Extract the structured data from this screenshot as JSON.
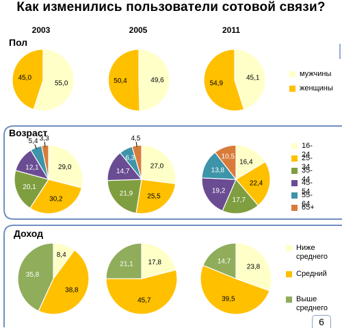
{
  "title": "Как изменились пользователи сотовой связи?",
  "years": [
    "2003",
    "2005",
    "2011"
  ],
  "page_number": "6",
  "colors": {
    "frame": "#6f8fbf",
    "male": "#ffffc8",
    "female": "#ffc000",
    "a16_24": "#ffffc8",
    "a25_34": "#ffc000",
    "a35_44": "#7f9e3f",
    "a45_54": "#6a4c93",
    "a55_64": "#3e94a8",
    "a65": "#d97c3a",
    "low": "#ffffc8",
    "mid": "#ffc000",
    "high": "#8fad5a"
  },
  "sections": [
    {
      "label": "Пол",
      "legend": [
        {
          "text": "мужчины",
          "color": "#ffffc8"
        },
        {
          "text": "женщины",
          "color": "#ffc000"
        }
      ]
    },
    {
      "label": "Возраст",
      "legend": [
        {
          "text": "16-24",
          "color": "#ffffc8"
        },
        {
          "text": "25-34",
          "color": "#ffc000"
        },
        {
          "text": "35-44",
          "color": "#7f9e3f"
        },
        {
          "text": "45-54",
          "color": "#6a4c93"
        },
        {
          "text": "55-64",
          "color": "#3e94a8"
        },
        {
          "text": "65+",
          "color": "#d97c3a"
        }
      ]
    },
    {
      "label": "Доход",
      "legend": [
        {
          "text": "Ниже\nсреднего",
          "color": "#ffffc8"
        },
        {
          "text": "Средний",
          "color": "#ffc000"
        },
        {
          "text": "Выше\nсреднего",
          "color": "#8fad5a"
        }
      ]
    }
  ],
  "chart_data": [
    {
      "type": "pie",
      "section": "Пол",
      "year": "2003",
      "slices": [
        {
          "category": "мужчины",
          "label": "55,0",
          "value": 55.0
        },
        {
          "category": "женщины",
          "label": "45,0",
          "value": 45.0
        }
      ]
    },
    {
      "type": "pie",
      "section": "Пол",
      "year": "2005",
      "slices": [
        {
          "category": "мужчины",
          "label": "49,6",
          "value": 49.6
        },
        {
          "category": "женщины",
          "label": "50,4",
          "value": 50.4
        }
      ]
    },
    {
      "type": "pie",
      "section": "Пол",
      "year": "2011",
      "slices": [
        {
          "category": "мужчины",
          "label": "45,1",
          "value": 45.1
        },
        {
          "category": "женщины",
          "label": "54,9",
          "value": 54.9
        }
      ]
    },
    {
      "type": "pie",
      "section": "Возраст",
      "year": "2003",
      "slices": [
        {
          "category": "16-24",
          "label": "29,0",
          "value": 29.0
        },
        {
          "category": "25-34",
          "label": "30,2",
          "value": 30.2
        },
        {
          "category": "35-44",
          "label": "20,1",
          "value": 20.1
        },
        {
          "category": "45-54",
          "label": "12,1",
          "value": 12.1
        },
        {
          "category": "55-64",
          "label": "5,4",
          "value": 5.4
        },
        {
          "category": "65+",
          "label": "3,3",
          "value": 3.3
        }
      ]
    },
    {
      "type": "pie",
      "section": "Возраст",
      "year": "2005",
      "slices": [
        {
          "category": "16-24",
          "label": "27,0",
          "value": 27.0
        },
        {
          "category": "25-34",
          "label": "25,5",
          "value": 25.5
        },
        {
          "category": "35-44",
          "label": "21,9",
          "value": 21.9
        },
        {
          "category": "45-54",
          "label": "14,7",
          "value": 14.7
        },
        {
          "category": "55-64",
          "label": "6,3",
          "value": 6.3
        },
        {
          "category": "65+",
          "label": "4,5",
          "value": 4.5
        }
      ]
    },
    {
      "type": "pie",
      "section": "Возраст",
      "year": "2011",
      "slices": [
        {
          "category": "16-24",
          "label": "16,4",
          "value": 16.4
        },
        {
          "category": "25-34",
          "label": "22,4",
          "value": 22.4
        },
        {
          "category": "35-44",
          "label": "17,7",
          "value": 17.7
        },
        {
          "category": "45-54",
          "label": "19,2",
          "value": 19.2
        },
        {
          "category": "55-64",
          "label": "13,8",
          "value": 13.8
        },
        {
          "category": "65+",
          "label": "10,5",
          "value": 10.5
        }
      ]
    },
    {
      "type": "pie",
      "section": "Доход",
      "year": "2003",
      "slices": [
        {
          "category": "Ниже среднего",
          "label": "8,4",
          "value": 8.4
        },
        {
          "category": "Средний",
          "label": "38,8",
          "value": 38.8
        },
        {
          "category": "Выше среднего",
          "label": "35,8",
          "value": 35.8
        }
      ]
    },
    {
      "type": "pie",
      "section": "Доход",
      "year": "2005",
      "slices": [
        {
          "category": "Ниже среднего",
          "label": "17,8",
          "value": 17.8
        },
        {
          "category": "Средний",
          "label": "45,7",
          "value": 45.7
        },
        {
          "category": "Выше среднего",
          "label": "21,1",
          "value": 21.1
        }
      ]
    },
    {
      "type": "pie",
      "section": "Доход",
      "year": "2011",
      "slices": [
        {
          "category": "Ниже среднего",
          "label": "23,8",
          "value": 23.8
        },
        {
          "category": "Средний",
          "label": "39,5",
          "value": 39.5
        },
        {
          "category": "Выше среднего",
          "label": "14,7",
          "value": 14.7
        }
      ]
    }
  ]
}
